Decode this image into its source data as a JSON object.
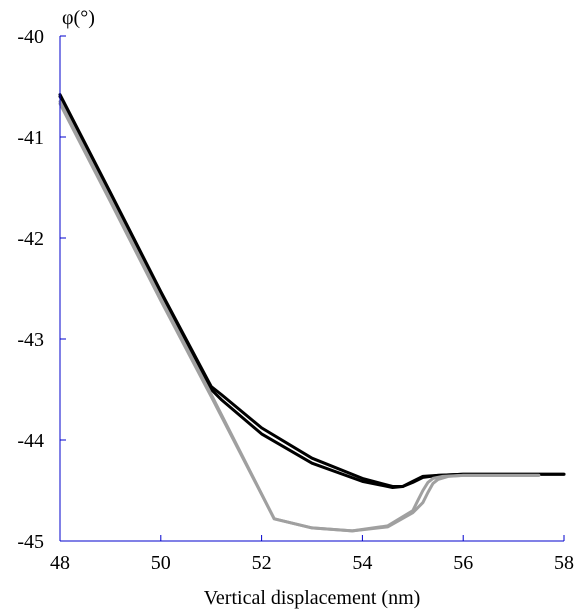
{
  "chart_data": {
    "type": "line",
    "xlabel": "Vertical displacement (nm)",
    "ylabel": "φ(°)",
    "xlim": [
      48,
      58
    ],
    "ylim": [
      -45,
      -40
    ],
    "xticks": [
      48,
      50,
      52,
      54,
      56,
      58
    ],
    "yticks": [
      -40,
      -41,
      -42,
      -43,
      -44,
      -45
    ],
    "grid": false,
    "colors": {
      "axis": "#0000cc",
      "approach": "#000000",
      "retract": "#a0a0a0"
    },
    "series": [
      {
        "color": "#000000",
        "x": [
          48,
          49,
          50,
          51,
          51.2,
          52,
          53,
          54,
          54.6,
          54.8,
          55,
          55.2,
          55.5,
          56,
          58
        ],
        "y": [
          -40.58,
          -41.55,
          -42.53,
          -43.47,
          -43.55,
          -43.88,
          -44.18,
          -44.38,
          -44.46,
          -44.46,
          -44.42,
          -44.37,
          -44.35,
          -44.34,
          -44.34
        ]
      },
      {
        "color": "#000000",
        "x": [
          48,
          49,
          50,
          51,
          51.2,
          52,
          53,
          54,
          54.6,
          54.8,
          55,
          55.2,
          55.5,
          56,
          58
        ],
        "y": [
          -40.6,
          -41.57,
          -42.55,
          -43.5,
          -43.6,
          -43.94,
          -44.23,
          -44.41,
          -44.47,
          -44.46,
          -44.41,
          -44.36,
          -44.35,
          -44.34,
          -44.34
        ]
      },
      {
        "color": "#a0a0a0",
        "x": [
          48,
          49,
          50,
          51,
          52.25,
          53,
          53.8,
          54.5,
          55,
          55.1,
          55.2,
          55.3,
          55.4,
          55.6,
          56,
          57.5
        ],
        "y": [
          -40.65,
          -41.62,
          -42.6,
          -43.55,
          -44.78,
          -44.87,
          -44.9,
          -44.85,
          -44.7,
          -44.6,
          -44.5,
          -44.42,
          -44.38,
          -44.36,
          -44.35,
          -44.35
        ]
      },
      {
        "color": "#a0a0a0",
        "x": [
          48,
          49,
          50,
          51,
          52.25,
          53,
          53.8,
          54.5,
          55,
          55.2,
          55.3,
          55.4,
          55.5,
          55.7,
          56,
          57.5
        ],
        "y": [
          -40.67,
          -41.64,
          -42.62,
          -43.57,
          -44.78,
          -44.87,
          -44.9,
          -44.86,
          -44.72,
          -44.62,
          -44.52,
          -44.43,
          -44.39,
          -44.36,
          -44.35,
          -44.35
        ]
      }
    ]
  }
}
